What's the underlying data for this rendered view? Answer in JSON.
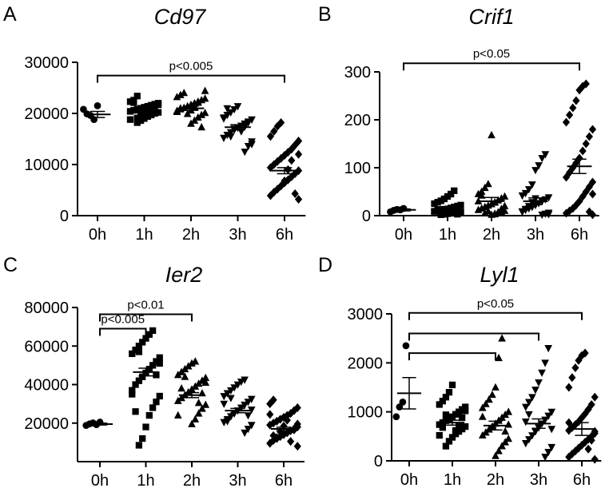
{
  "chart_data": [
    {
      "type": "scatter",
      "panel": "A",
      "title": "Cd97",
      "xlabel": "",
      "ylabel": "",
      "categories": [
        "0h",
        "1h",
        "2h",
        "3h",
        "6h"
      ],
      "yticks": [
        0,
        10000,
        20000,
        30000
      ],
      "ytick_labels": [
        "0",
        "10000",
        "20000",
        "30000"
      ],
      "ylim": [
        0,
        30000
      ],
      "markers": [
        "circle",
        "square",
        "triangle-up",
        "triangle-down",
        "diamond"
      ],
      "means": [
        19800,
        20500,
        21000,
        17300,
        8800
      ],
      "sems": [
        600,
        300,
        400,
        500,
        600
      ],
      "series": [
        {
          "name": "0h",
          "values": [
            20800,
            19900,
            19600,
            18800,
            21500
          ]
        },
        {
          "name": "1h",
          "values": [
            18200,
            18600,
            19000,
            19400,
            19700,
            20000,
            20200,
            20400,
            20600,
            20800,
            21000,
            21200,
            21400,
            21600,
            21800,
            22000,
            22300,
            22600,
            19100,
            19500,
            20100,
            20500,
            20900,
            21300,
            21700,
            18800,
            22100,
            23400,
            19800,
            20700
          ]
        },
        {
          "name": "2h",
          "values": [
            18000,
            18600,
            19200,
            19700,
            20100,
            20500,
            20800,
            21100,
            21400,
            21700,
            22000,
            22300,
            22600,
            22900,
            23200,
            23600,
            24000,
            19900,
            20600,
            21300,
            22100,
            17300,
            24400,
            20300,
            21000
          ]
        },
        {
          "name": "3h",
          "values": [
            12500,
            13600,
            14500,
            15200,
            15800,
            16300,
            16800,
            17200,
            17600,
            18000,
            18400,
            18800,
            19200,
            19700,
            20200,
            20800,
            21400,
            16500,
            17400,
            18200,
            14000,
            19000,
            21000,
            15500,
            17000
          ]
        },
        {
          "name": "6h",
          "values": [
            3200,
            3900,
            4600,
            5200,
            5800,
            6400,
            7000,
            7600,
            8200,
            8800,
            9400,
            10000,
            10600,
            11200,
            11800,
            12400,
            13000,
            13800,
            14600,
            15500,
            16500,
            17500,
            18200,
            6800,
            9000,
            10800,
            4300,
            12000
          ]
        }
      ],
      "annotations": [
        {
          "text": "p<0.005",
          "from": "0h",
          "to": "6h",
          "y": 27400
        }
      ]
    },
    {
      "type": "scatter",
      "panel": "B",
      "title": "Crif1",
      "xlabel": "",
      "ylabel": "",
      "categories": [
        "0h",
        "1h",
        "2h",
        "3h",
        "6h"
      ],
      "yticks": [
        0,
        100,
        200,
        300
      ],
      "ytick_labels": [
        "0",
        "100",
        "200",
        "300"
      ],
      "ylim": [
        0,
        300
      ],
      "markers": [
        "circle",
        "square",
        "triangle-up",
        "triangle-down",
        "diamond"
      ],
      "means": [
        12,
        15,
        30,
        30,
        103
      ],
      "sems": [
        2,
        4,
        8,
        7,
        15
      ],
      "series": [
        {
          "name": "0h",
          "values": [
            8,
            11,
            13,
            12,
            15
          ]
        },
        {
          "name": "1h",
          "values": [
            2,
            3,
            4,
            5,
            6,
            7,
            8,
            9,
            10,
            11,
            12,
            14,
            16,
            18,
            20,
            22,
            25,
            28,
            31,
            35,
            40,
            45,
            52,
            3,
            6,
            9,
            13,
            2,
            5,
            8
          ]
        },
        {
          "name": "2h",
          "values": [
            2,
            4,
            6,
            8,
            10,
            12,
            15,
            18,
            21,
            24,
            28,
            32,
            36,
            40,
            45,
            50,
            58,
            66,
            168,
            3,
            7,
            14,
            20,
            30,
            42,
            5,
            9
          ]
        },
        {
          "name": "3h",
          "values": [
            2,
            4,
            6,
            9,
            12,
            15,
            18,
            22,
            26,
            30,
            34,
            38,
            42,
            47,
            55,
            65,
            95,
            105,
            120,
            128,
            3,
            8,
            14,
            20,
            28,
            36
          ]
        },
        {
          "name": "6h",
          "values": [
            2,
            5,
            10,
            15,
            22,
            30,
            40,
            50,
            60,
            70,
            80,
            90,
            100,
            110,
            120,
            135,
            150,
            165,
            180,
            195,
            210,
            225,
            240,
            262,
            270,
            275,
            8,
            45
          ]
        }
      ],
      "annotations": [
        {
          "text": "p<0.05",
          "from": "0h",
          "to": "6h",
          "y": 318
        }
      ]
    },
    {
      "type": "scatter",
      "panel": "C",
      "title": "Ier2",
      "xlabel": "",
      "ylabel": "",
      "categories": [
        "0h",
        "1h",
        "2h",
        "3h",
        "6h"
      ],
      "yticks": [
        20000,
        40000,
        60000,
        80000
      ],
      "ytick_labels": [
        "20000",
        "40000",
        "60000",
        "80000"
      ],
      "ylim": [
        0,
        80000
      ],
      "markers": [
        "circle",
        "square",
        "triangle-up",
        "triangle-down",
        "diamond"
      ],
      "means": [
        19500,
        46500,
        34500,
        26500,
        17000
      ],
      "sems": [
        500,
        2000,
        1300,
        1100,
        900
      ],
      "series": [
        {
          "name": "0h",
          "values": [
            18800,
            19600,
            20100,
            19200,
            20500
          ]
        },
        {
          "name": "1h",
          "values": [
            8500,
            12000,
            18000,
            24000,
            28000,
            31000,
            34000,
            37000,
            40000,
            42000,
            44000,
            46000,
            48000,
            50000,
            52000,
            54000,
            56000,
            58000,
            60000,
            62000,
            64000,
            66000,
            68000,
            45000,
            51000,
            35000,
            26000,
            57000
          ]
        },
        {
          "name": "2h",
          "values": [
            19500,
            22000,
            25000,
            27500,
            29500,
            31500,
            33000,
            34500,
            36000,
            37500,
            39000,
            40500,
            42000,
            43500,
            45000,
            46500,
            48000,
            49500,
            51000,
            52000,
            30500,
            35500,
            41000,
            24000,
            38000,
            44000
          ]
        },
        {
          "name": "3h",
          "values": [
            15000,
            17000,
            19000,
            20500,
            22000,
            23500,
            25000,
            26500,
            28000,
            29500,
            31000,
            32500,
            34000,
            35500,
            37000,
            38500,
            40000,
            41500,
            42500,
            24000,
            27000,
            30000,
            21000,
            33000
          ]
        },
        {
          "name": "6h",
          "values": [
            8000,
            9500,
            11000,
            12000,
            13000,
            14000,
            15000,
            16000,
            17000,
            18000,
            19000,
            20000,
            21000,
            22000,
            23000,
            24000,
            25000,
            26500,
            28000,
            30000,
            32000,
            12500,
            15500,
            18500,
            21500,
            10500,
            16500,
            19500,
            24500,
            13500
          ]
        }
      ],
      "annotations": [
        {
          "text": "p<0.005",
          "from": "0h",
          "to": "1h",
          "y": 69000
        },
        {
          "text": "p<0.01",
          "from": "0h",
          "to": "2h",
          "y": 76500
        }
      ]
    },
    {
      "type": "scatter",
      "panel": "D",
      "title": "Lyl1",
      "xlabel": "",
      "ylabel": "",
      "categories": [
        "0h",
        "1h",
        "2h",
        "3h",
        "6h"
      ],
      "yticks": [
        0,
        1000,
        2000,
        3000
      ],
      "ytick_labels": [
        "0",
        "1000",
        "2000",
        "3000"
      ],
      "ylim": [
        0,
        3000
      ],
      "markers": [
        "circle",
        "square",
        "triangle-up",
        "triangle-down",
        "diamond"
      ],
      "means": [
        1380,
        780,
        720,
        760,
        650
      ],
      "sems": [
        320,
        50,
        90,
        95,
        130
      ],
      "series": [
        {
          "name": "0h",
          "values": [
            900,
            1100,
            1200,
            2350
          ]
        },
        {
          "name": "1h",
          "values": [
            300,
            400,
            480,
            550,
            600,
            650,
            700,
            740,
            780,
            820,
            860,
            900,
            950,
            1000,
            1050,
            1100,
            1150,
            1220,
            1300,
            1400,
            1550,
            620,
            720,
            880,
            1020,
            520,
            680,
            940
          ]
        },
        {
          "name": "2h",
          "values": [
            100,
            200,
            300,
            380,
            450,
            520,
            580,
            640,
            700,
            760,
            820,
            880,
            940,
            1000,
            1080,
            1160,
            1250,
            1350,
            1500,
            2100,
            2500,
            600,
            740,
            900
          ]
        },
        {
          "name": "3h",
          "values": [
            80,
            180,
            280,
            360,
            440,
            520,
            600,
            680,
            760,
            840,
            920,
            1000,
            1100,
            1200,
            1300,
            1450,
            1600,
            1800,
            2000,
            2300,
            650,
            800,
            950
          ]
        },
        {
          "name": "6h",
          "values": [
            30,
            80,
            140,
            200,
            260,
            320,
            380,
            440,
            500,
            560,
            620,
            680,
            740,
            800,
            880,
            960,
            1050,
            1150,
            1300,
            1500,
            1700,
            1900,
            2050,
            2150,
            2200,
            240,
            420,
            600,
            780
          ]
        }
      ],
      "annotations": [
        {
          "text": "p<0.05",
          "from": "0h",
          "to": "6h",
          "y": 3020
        },
        {
          "text": "",
          "from": "0h",
          "to": "3h",
          "y": 2600
        },
        {
          "text": "",
          "from": "0h",
          "to": "2h",
          "y": 2200
        }
      ]
    }
  ]
}
